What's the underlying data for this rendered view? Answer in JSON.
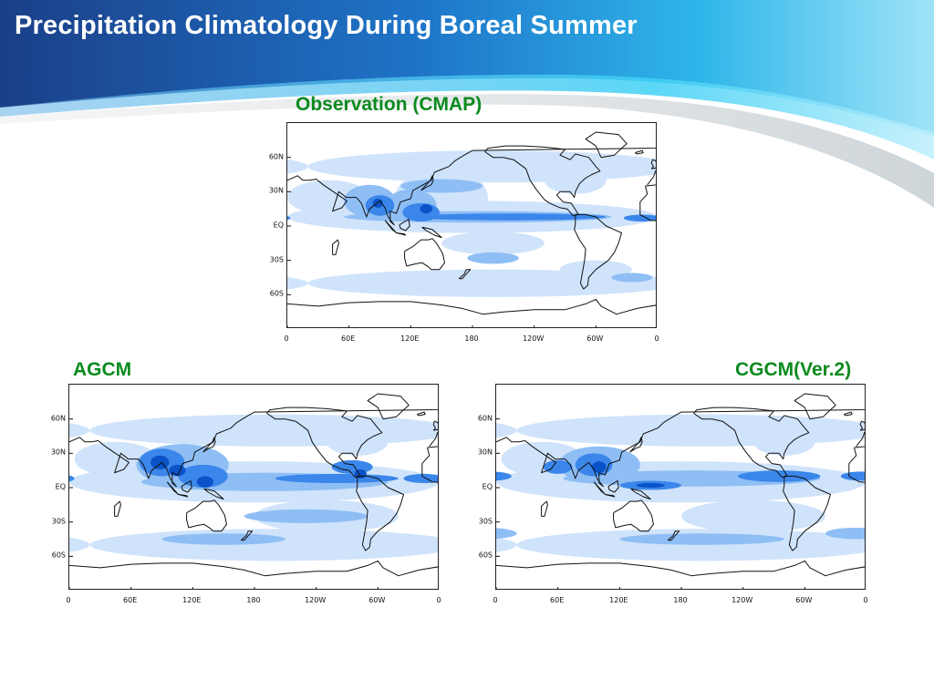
{
  "slide": {
    "title": "Precipitation Climatology During Boreal Summer",
    "colors": {
      "title_bar": "#1a4f9c",
      "accent_wave": "#3fd0f5",
      "panel_title": "#0b8a1e"
    }
  },
  "chart_data": [
    {
      "type": "heatmap",
      "title": "Observation (CMAP)",
      "lat_ticks": [
        "60N",
        "30N",
        "EQ",
        "30S",
        "60S"
      ],
      "lon_ticks": [
        "0",
        "60E",
        "120E",
        "180",
        "120W",
        "60W",
        "0"
      ],
      "lon_range": [
        0,
        360
      ],
      "lat_range": [
        -90,
        90
      ],
      "colors": [
        "#cfe3fb",
        "#8fbef5",
        "#3a86ea",
        "#0a52c7"
      ]
    },
    {
      "type": "heatmap",
      "title": "AGCM",
      "lat_ticks": [
        "60N",
        "30N",
        "EQ",
        "30S",
        "60S"
      ],
      "lon_ticks": [
        "0",
        "60E",
        "120E",
        "180",
        "120W",
        "60W",
        "0"
      ],
      "lon_range": [
        0,
        360
      ],
      "lat_range": [
        -90,
        90
      ],
      "colors": [
        "#cfe3fb",
        "#8fbef5",
        "#3a86ea",
        "#0a52c7"
      ]
    },
    {
      "type": "heatmap",
      "title": "CGCM(Ver.2)",
      "lat_ticks": [
        "60N",
        "30N",
        "EQ",
        "30S",
        "60S"
      ],
      "lon_ticks": [
        "0",
        "60E",
        "120E",
        "180",
        "120W",
        "60W",
        "0"
      ],
      "lon_range": [
        0,
        360
      ],
      "lat_range": [
        -90,
        90
      ],
      "colors": [
        "#cfe3fb",
        "#8fbef5",
        "#3a86ea",
        "#0a52c7"
      ]
    }
  ]
}
